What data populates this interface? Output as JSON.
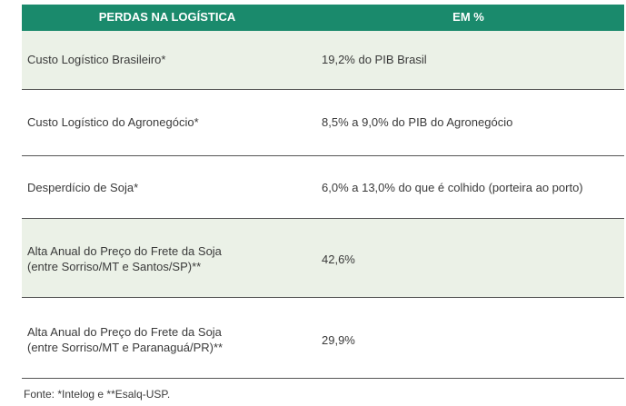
{
  "table": {
    "header": {
      "col1": "PERDAS NA LOGÍSTICA",
      "col2": "EM %"
    },
    "rows": [
      {
        "label_line1": "Custo Logístico Brasileiro*",
        "label_line2": "",
        "value": "19,2% do PIB Brasil"
      },
      {
        "label_line1": "Custo Logístico do Agronegócio*",
        "label_line2": "",
        "value": "8,5% a 9,0% do PIB do Agronegócio"
      },
      {
        "label_line1": "Desperdício de Soja*",
        "label_line2": "",
        "value": "6,0% a 13,0% do que é colhido (porteira ao porto)"
      },
      {
        "label_line1": "Alta Anual do Preço do Frete da Soja",
        "label_line2": "(entre Sorriso/MT e Santos/SP)**",
        "value": "42,6%"
      },
      {
        "label_line1": "Alta Anual do Preço do Frete da Soja",
        "label_line2": "(entre Sorriso/MT e Paranaguá/PR)**",
        "value": "29,9%"
      }
    ]
  },
  "footnote": "Fonte: *Intelog e **Esalq-USP.",
  "colors": {
    "header_bg": "#1a8a6c",
    "shade_bg": "#ebf1e7",
    "divider": "#555555"
  }
}
